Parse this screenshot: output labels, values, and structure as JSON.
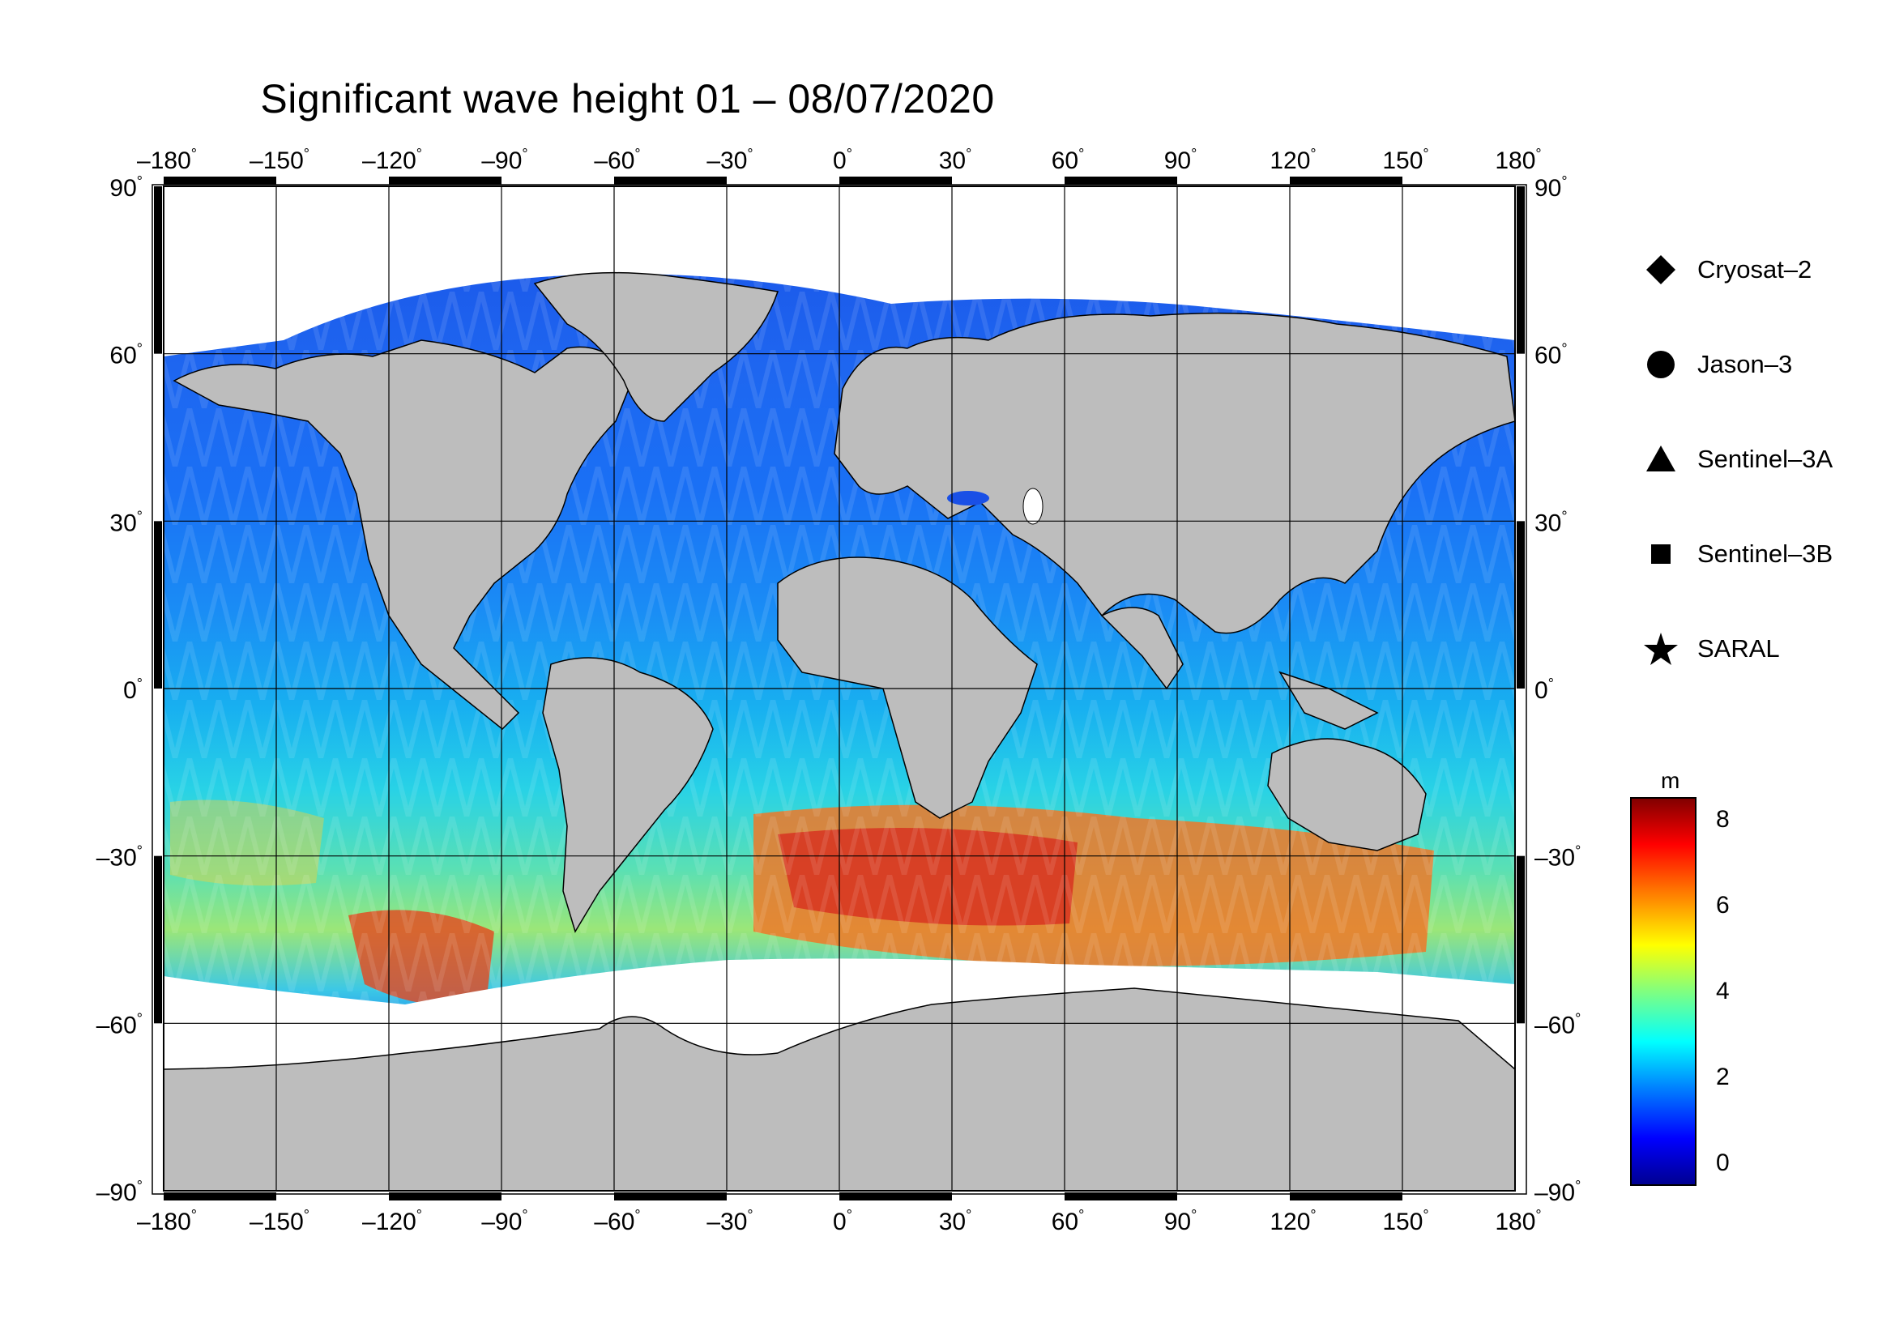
{
  "title": "Significant wave height 01 – 08/07/2020",
  "axes": {
    "x_ticks": [
      "–180",
      "–150",
      "–120",
      "–90",
      "–60",
      "–30",
      "0",
      "30",
      "60",
      "90",
      "120",
      "150",
      "180"
    ],
    "y_ticks_left": [
      "90",
      "60",
      "30",
      "0",
      "–30",
      "–60",
      "–90"
    ],
    "y_ticks_right": [
      "90",
      "60",
      "30",
      "0",
      "–30",
      "–60",
      "–90"
    ],
    "degree_symbol": "°",
    "lon_range": [
      -180,
      180
    ],
    "lat_range": [
      -90,
      90
    ]
  },
  "legend": {
    "items": [
      {
        "label": "Cryosat–2",
        "icon": "diamond-icon"
      },
      {
        "label": "Jason–3",
        "icon": "circle-icon"
      },
      {
        "label": "Sentinel–3A",
        "icon": "triangle-icon"
      },
      {
        "label": "Sentinel–3B",
        "icon": "square-icon"
      },
      {
        "label": "SARAL",
        "icon": "star-icon"
      }
    ]
  },
  "colorbar": {
    "unit": "m",
    "ticks": [
      "8",
      "6",
      "4",
      "2",
      "0"
    ],
    "range": [
      -0.5,
      8.5
    ],
    "colormap": [
      "#00008f",
      "#0000ff",
      "#0080ff",
      "#00ffff",
      "#80ff80",
      "#ffff00",
      "#ff8000",
      "#ff0000",
      "#800000"
    ]
  },
  "colors": {
    "land": "#bdbdbd",
    "ice": "#ffffff",
    "low_wave": "#1e5af0",
    "mid_wave": "#14c8f0",
    "high_wave": "#e61e00"
  }
}
